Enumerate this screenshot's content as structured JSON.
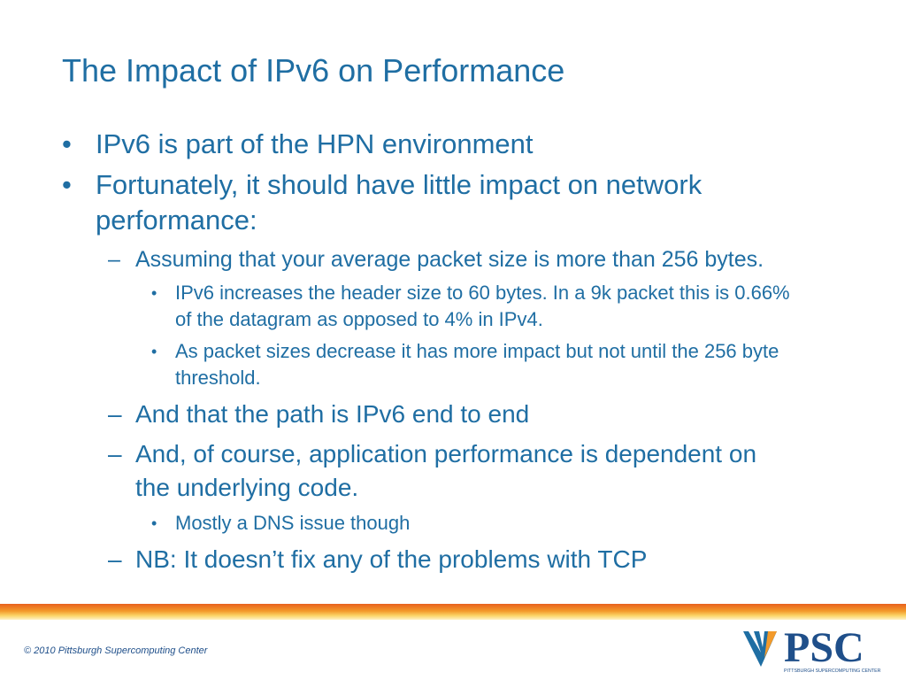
{
  "title": "The Impact of IPv6 on Performance",
  "bullets": [
    {
      "text": "IPv6 is part of the HPN environment"
    },
    {
      "text": "Fortunately, it should have little impact on network performance:",
      "items": [
        {
          "text": "Assuming that your average packet size is more than 256 bytes.",
          "items": [
            {
              "text": "IPv6 increases the header size to 60 bytes. In a 9k packet this is 0.66% of the datagram as opposed to 4% in IPv4."
            },
            {
              "text": "As packet sizes decrease it has more impact but not until the 256 byte threshold."
            }
          ]
        },
        {
          "text": "And that the path is IPv6 end to end"
        },
        {
          "text": "And, of course, application performance is dependent on the underlying code.",
          "items": [
            {
              "text": "Mostly a DNS issue though"
            }
          ]
        },
        {
          "text": "NB: It doesn’t fix any of the problems with TCP"
        }
      ]
    }
  ],
  "footer": "© 2010 Pittsburgh Supercomputing Center",
  "logo": {
    "name": "PSC",
    "subtitle": "PITTSBURGH SUPERCOMPUTING CENTER"
  }
}
